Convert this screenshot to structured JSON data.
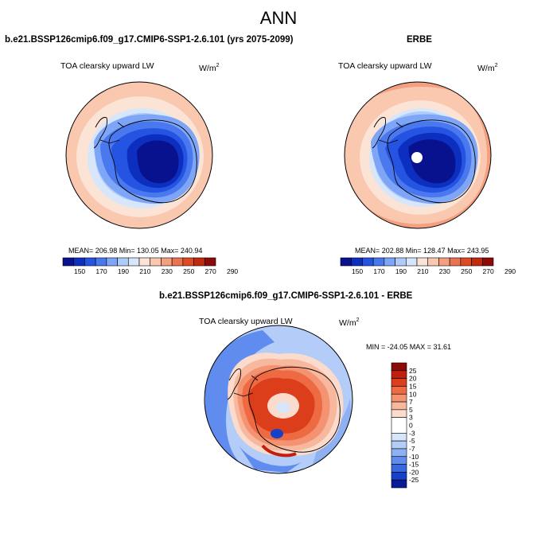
{
  "title": "ANN",
  "panels": [
    {
      "title": "b.e21.BSSP126cmip6.f09_g17.CMIP6-SSP1-2.6.101 (yrs 2075-2099)",
      "variable": "TOA clearsky upward LW",
      "units": "W/m",
      "units_sup": "2",
      "stats": {
        "mean": "206.98",
        "min": "130.05",
        "max": "240.94",
        "text": "MEAN= 206.98  Min= 130.05  Max= 240.94"
      },
      "colorbar_ticks": [
        "150",
        "170",
        "190",
        "210",
        "230",
        "250",
        "270",
        "290"
      ]
    },
    {
      "title": "ERBE",
      "variable": "TOA clearsky upward LW",
      "units": "W/m",
      "units_sup": "2",
      "stats": {
        "mean": "202.88",
        "min": "128.47",
        "max": "243.95",
        "text": "MEAN= 202.88  Min= 128.47  Max= 243.95"
      },
      "colorbar_ticks": [
        "150",
        "170",
        "190",
        "210",
        "230",
        "250",
        "270",
        "290"
      ]
    },
    {
      "title": "b.e21.BSSP126cmip6.f09_g17.CMIP6-SSP1-2.6.101 - ERBE",
      "variable": "TOA clearsky upward LW",
      "units": "W/m",
      "units_sup": "2",
      "stats": {
        "min": "-24.05",
        "max": "31.61",
        "text": "MIN = -24.05 MAX =  31.61"
      },
      "colorbar_ticks": [
        "25",
        "20",
        "15",
        "10",
        "7",
        "5",
        "3",
        "0",
        "-3",
        "-5",
        "-7",
        "-10",
        "-15",
        "-20",
        "-25"
      ]
    }
  ],
  "colors": {
    "abs_scale": [
      "#08128f",
      "#0d2fc0",
      "#2554e3",
      "#4a79ef",
      "#7ea5f6",
      "#aecbfa",
      "#d8e6fb",
      "#fbe3d6",
      "#fac7af",
      "#f49f80",
      "#ea7451",
      "#de4a25",
      "#c02a0d",
      "#8c0a08"
    ],
    "diff_scale": [
      "#8c0a08",
      "#c21f0e",
      "#dc3d1b",
      "#ee6a43",
      "#f49371",
      "#f8b89d",
      "#fbdccc",
      "#ffffff",
      "#d7e6fb",
      "#b4cdf8",
      "#8eb1f3",
      "#5f8cee",
      "#3968e3",
      "#1640c8",
      "#081a96"
    ]
  }
}
